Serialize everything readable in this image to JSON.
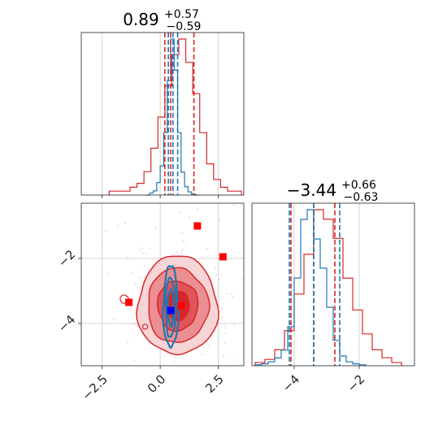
{
  "chart_data": [
    {
      "type": "histogram",
      "panel": "top-left",
      "title": {
        "median": "0.89",
        "plus": "+0.57",
        "minus": "−0.59"
      },
      "xlim": [
        -3.4,
        3.6
      ],
      "x_ticks": [
        -2.5,
        0.0,
        2.5
      ],
      "y_ticks_shown": false,
      "grid": true,
      "series": [
        {
          "name": "blue",
          "color": "#1f77b4",
          "bin_edges": [
            -0.6,
            -0.45,
            -0.3,
            -0.15,
            0.0,
            0.15,
            0.3,
            0.45,
            0.6,
            0.75,
            0.9,
            1.05,
            1.2,
            1.35,
            1.5,
            1.65
          ],
          "counts": [
            0,
            2,
            4,
            12,
            28,
            60,
            110,
            150,
            120,
            60,
            22,
            8,
            3,
            1,
            0
          ],
          "quantile_lines": [
            0.35,
            0.55,
            0.75
          ]
        },
        {
          "name": "red",
          "color": "#d62728",
          "bin_edges": [
            -2.2,
            -1.9,
            -1.6,
            -1.3,
            -1.0,
            -0.7,
            -0.4,
            -0.1,
            0.2,
            0.5,
            0.8,
            1.1,
            1.4,
            1.7,
            2.0,
            2.3,
            2.6,
            2.9,
            3.2,
            3.5
          ],
          "counts": [
            1,
            1,
            1,
            2,
            3,
            6,
            12,
            20,
            28,
            36,
            40,
            34,
            26,
            16,
            8,
            4,
            2,
            1,
            1
          ],
          "quantile_lines": [
            0.2,
            0.45,
            1.45
          ]
        }
      ]
    },
    {
      "type": "contour",
      "panel": "bottom-left",
      "xlim": [
        -3.4,
        3.6
      ],
      "ylim": [
        -5.3,
        -0.3
      ],
      "x_ticks": [
        -2.5,
        0.0,
        2.5
      ],
      "y_ticks": [
        -2,
        -4
      ],
      "grid": true,
      "series": [
        {
          "name": "red",
          "color": "#d62728",
          "center": [
            0.75,
            -3.45
          ],
          "levels_sigma": [
            0.95,
            0.72,
            0.48,
            0.28
          ],
          "sigma_x": 1.25,
          "sigma_y": 1.1,
          "outliers": [
            [
              1.6,
              -1.0
            ],
            [
              2.7,
              -1.95
            ],
            [
              -1.35,
              -3.35
            ],
            [
              0.9,
              -3.45
            ]
          ]
        },
        {
          "name": "blue",
          "color": "#1f77b4",
          "center": [
            0.45,
            -3.5
          ],
          "contour_radii": [
            [
              0.32,
              1.25
            ],
            [
              0.22,
              0.9
            ],
            [
              0.13,
              0.55
            ]
          ],
          "markers": [
            [
              0.45,
              -3.6
            ]
          ]
        }
      ]
    },
    {
      "type": "histogram",
      "panel": "bottom-right",
      "title": {
        "median": "−3.44",
        "plus": "+0.66",
        "minus": "−0.63"
      },
      "xlim": [
        -5.3,
        -0.3
      ],
      "x_ticks": [
        -4,
        -2
      ],
      "y_ticks_shown": false,
      "grid": true,
      "series": [
        {
          "name": "blue",
          "color": "#1f77b4",
          "bin_edges": [
            -5.2,
            -5.0,
            -4.8,
            -4.6,
            -4.4,
            -4.2,
            -4.0,
            -3.8,
            -3.6,
            -3.4,
            -3.2,
            -3.0,
            -2.8,
            -2.6,
            -2.4,
            -2.2,
            -2.0,
            -1.8
          ],
          "counts": [
            1,
            2,
            4,
            8,
            16,
            40,
            90,
            150,
            160,
            130,
            100,
            60,
            26,
            10,
            4,
            2,
            1
          ],
          "quantile_lines": [
            -4.15,
            -3.4,
            -2.6
          ]
        },
        {
          "name": "red",
          "color": "#d62728",
          "bin_edges": [
            -5.2,
            -4.9,
            -4.6,
            -4.3,
            -4.0,
            -3.7,
            -3.4,
            -3.1,
            -2.8,
            -2.5,
            -2.2,
            -1.9,
            -1.6,
            -1.3,
            -1.0,
            -0.7
          ],
          "counts": [
            2,
            4,
            10,
            22,
            45,
            70,
            98,
            92,
            80,
            55,
            35,
            20,
            10,
            5,
            2
          ],
          "quantile_lines": [
            -4.1,
            -3.4,
            -2.75
          ]
        }
      ]
    }
  ]
}
